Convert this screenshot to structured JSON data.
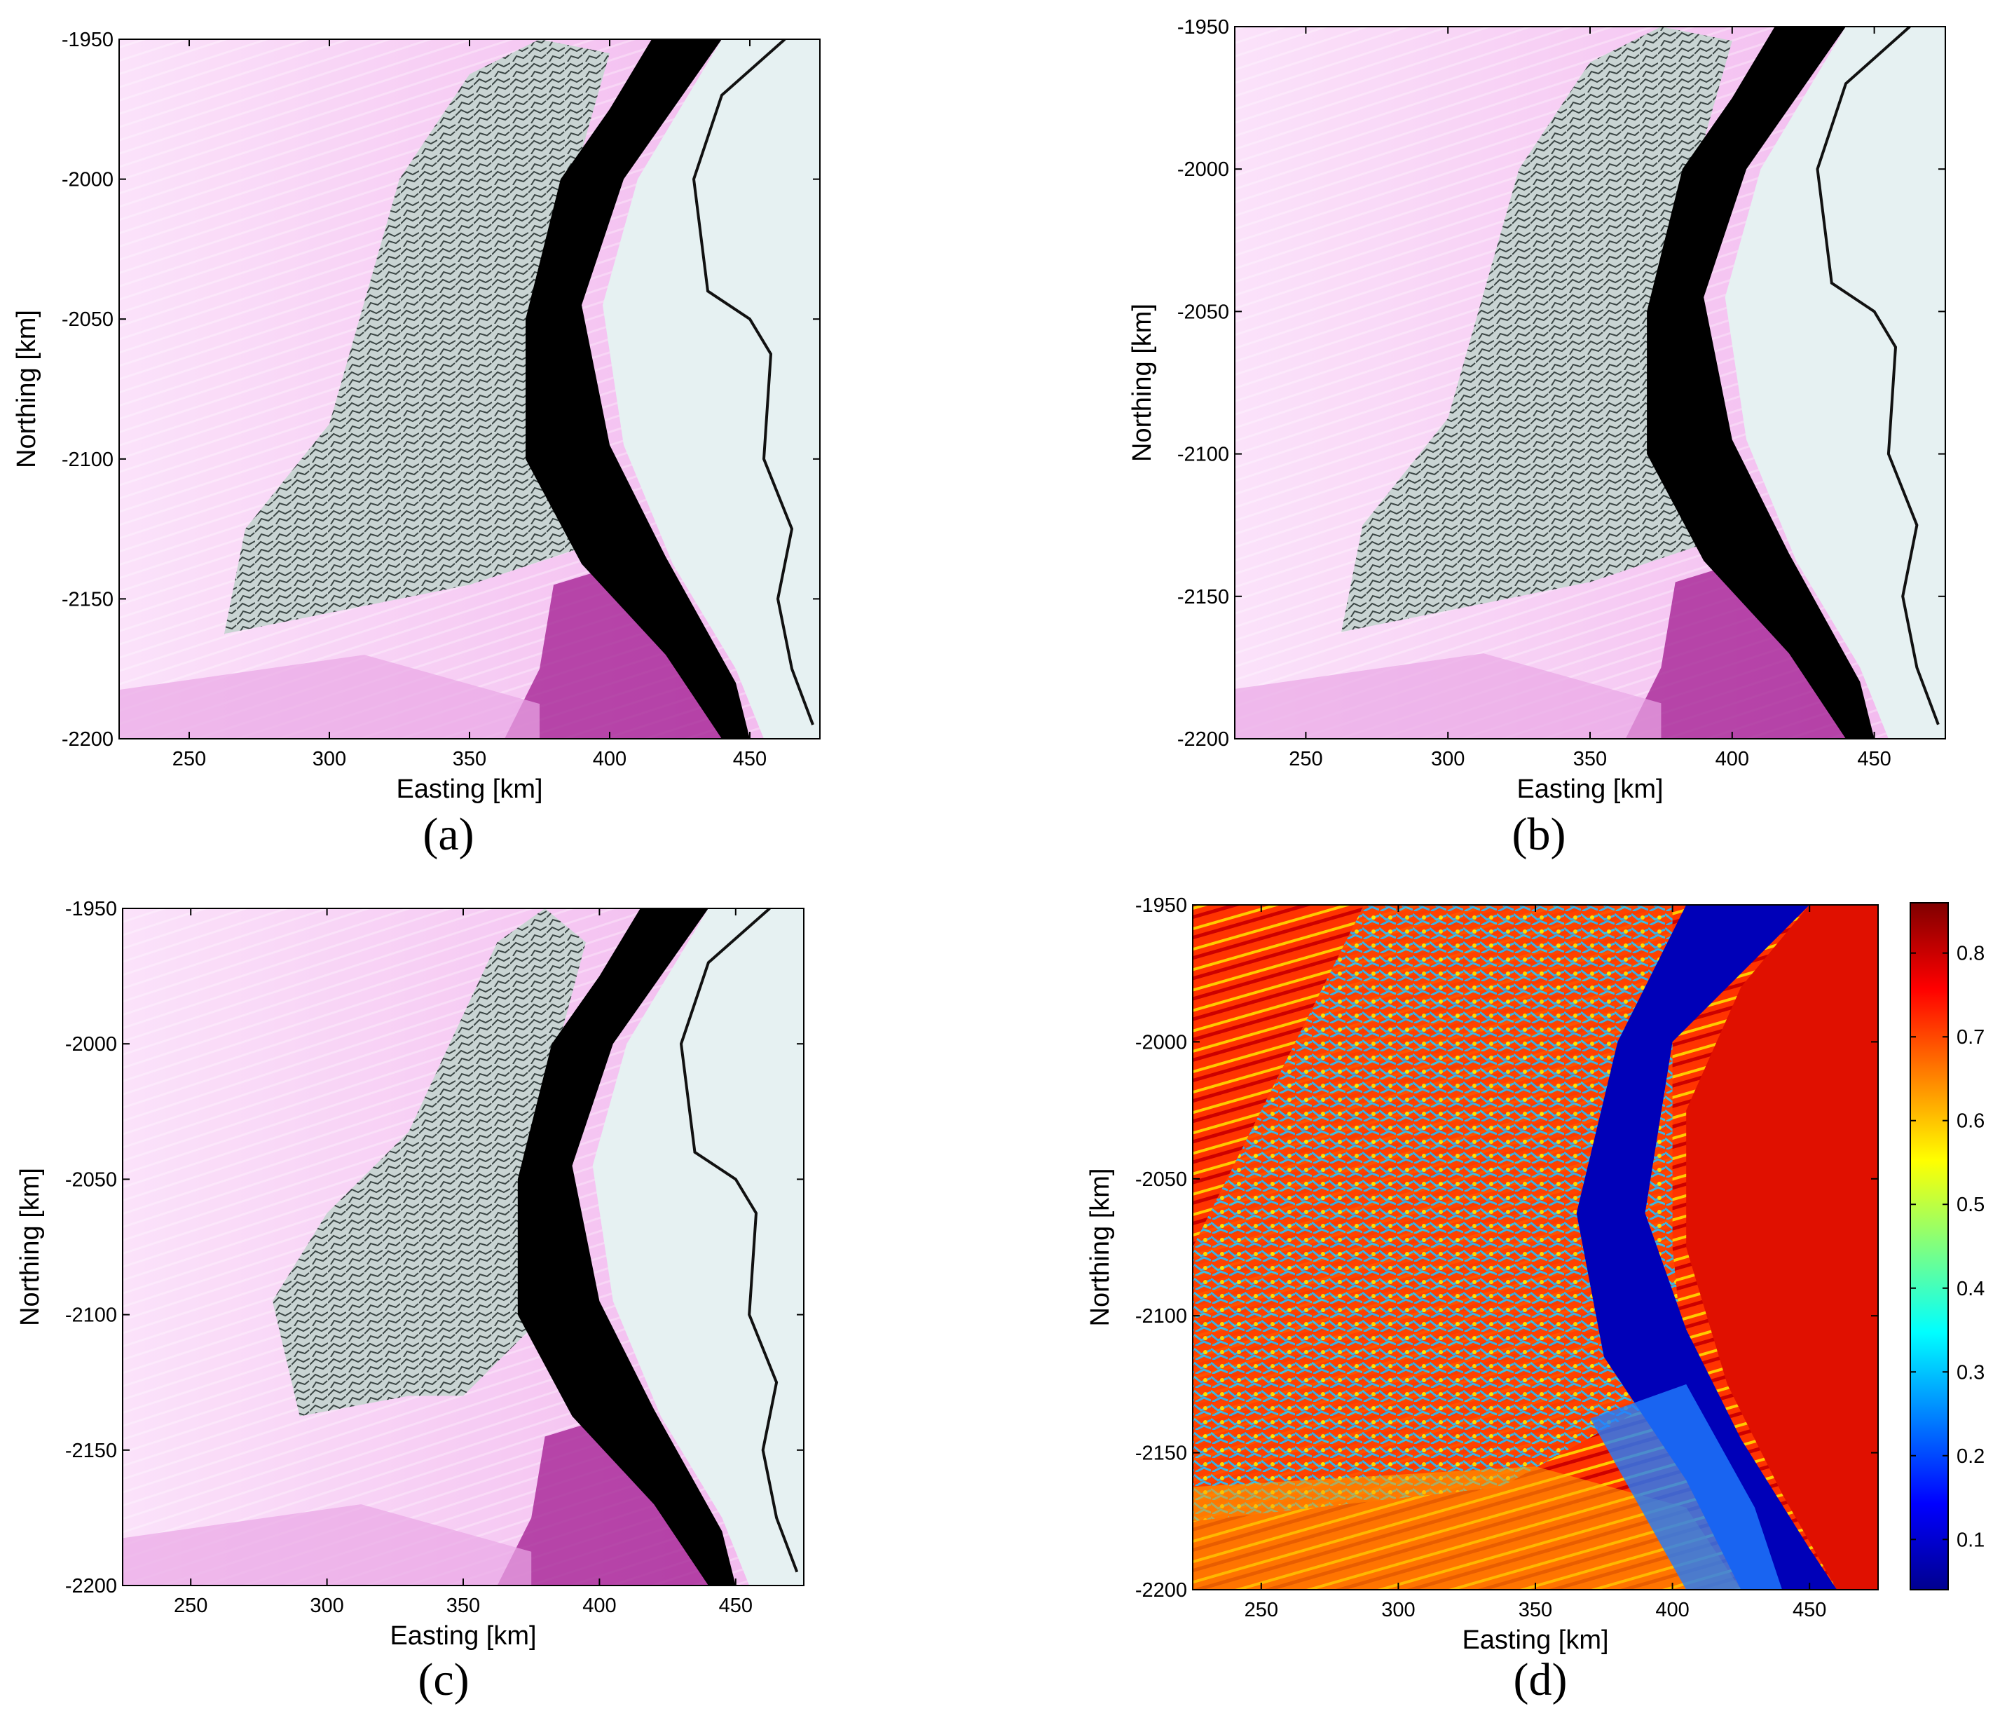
{
  "chart_data": [
    {
      "type": "heatmap",
      "panel": "(a)",
      "xlabel": "Easting [km]",
      "ylabel": "Northing [km]",
      "xlim": [
        225,
        475
      ],
      "ylim": [
        -2200,
        -1950
      ],
      "xticks": [
        250,
        300,
        350,
        400,
        450
      ],
      "yticks": [
        -1950,
        -2000,
        -2050,
        -2100,
        -2150,
        -2200
      ]
    },
    {
      "type": "heatmap",
      "panel": "(b)",
      "xlabel": "Easting [km]",
      "ylabel": "Northing [km]",
      "xlim": [
        225,
        475
      ],
      "ylim": [
        -2200,
        -1950
      ],
      "xticks": [
        250,
        300,
        350,
        400,
        450
      ],
      "yticks": [
        -1950,
        -2000,
        -2050,
        -2100,
        -2150,
        -2200
      ]
    },
    {
      "type": "heatmap",
      "panel": "(c)",
      "xlabel": "Easting [km]",
      "ylabel": "Northing [km]",
      "xlim": [
        225,
        475
      ],
      "ylim": [
        -2200,
        -1950
      ],
      "xticks": [
        250,
        300,
        350,
        400,
        450
      ],
      "yticks": [
        -1950,
        -2000,
        -2050,
        -2100,
        -2150,
        -2200
      ]
    },
    {
      "type": "heatmap",
      "panel": "(d)",
      "xlabel": "Easting [km]",
      "ylabel": "Northing [km]",
      "xlim": [
        225,
        475
      ],
      "ylim": [
        -2200,
        -1950
      ],
      "xticks": [
        250,
        300,
        350,
        400,
        450
      ],
      "yticks": [
        -1950,
        -2000,
        -2050,
        -2100,
        -2150,
        -2200
      ],
      "colorbar": {
        "ticks": [
          0.1,
          0.2,
          0.3,
          0.4,
          0.5,
          0.6,
          0.7,
          0.8
        ],
        "range": [
          0.04,
          0.86
        ],
        "colormap": "jet"
      }
    }
  ],
  "colors": {
    "open_water": "#000000",
    "fast_ice": "#e6f1f2",
    "cloud_pink": "#f6c6f3",
    "cloud_magenta": "#a0188f",
    "pack_ice": "#8a9a98"
  }
}
